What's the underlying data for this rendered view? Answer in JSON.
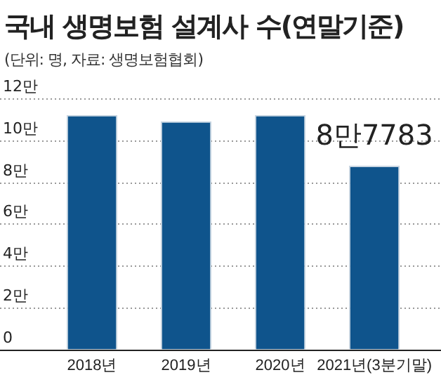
{
  "chart_data": {
    "type": "bar",
    "title": "국내 생명보험 설계사 수(연말기준)",
    "subtitle": "(단위: 명, 자료: 생명보험협회)",
    "categories": [
      "2018년",
      "2019년",
      "2020년",
      "2021년(3분기말)"
    ],
    "values": [
      11.2,
      10.9,
      11.2,
      8.7783
    ],
    "annotations": [
      {
        "text": "8만7783",
        "x": "2021년(3분기말)",
        "y": 8.7783
      }
    ],
    "color": "#0f548c",
    "ylim": [
      0,
      12
    ],
    "yticks": [
      0,
      {
        "value": 2,
        "label": "2만"
      },
      {
        "value": 4,
        "label": "4만"
      },
      {
        "value": 6,
        "label": "6만"
      },
      {
        "value": 8,
        "label": "8만"
      },
      {
        "value": 10,
        "label": "10만"
      },
      {
        "value": 12,
        "label": "12만"
      }
    ],
    "grid": "y",
    "legend": false
  }
}
